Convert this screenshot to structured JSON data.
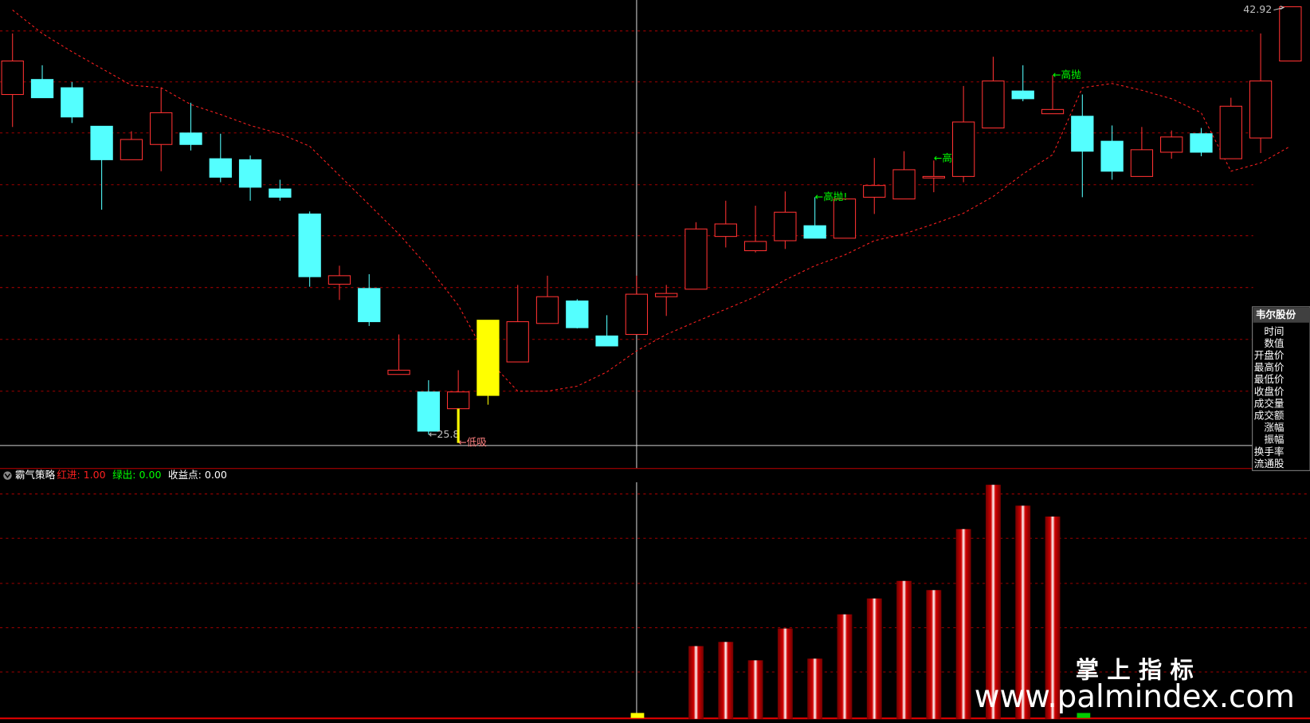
{
  "chart_data": [
    {
      "type": "candlestick",
      "open": [
        39.41,
        40.01,
        39.68,
        38.14,
        36.8,
        37.41,
        37.87,
        36.84,
        36.8,
        35.63,
        34.63,
        31.82,
        31.65,
        28.21,
        27.51,
        26.84,
        27.37,
        28.71,
        30.25,
        31.15,
        29.75,
        29.81,
        31.32,
        31.62,
        33.73,
        33.16,
        33.56,
        34.16,
        33.66,
        35.3,
        35.23,
        36.07,
        36.13,
        38.07,
        39.55,
        38.64,
        38.54,
        37.54,
        36.13,
        37.1,
        37.84,
        36.84,
        37.67,
        40.75
      ],
      "high": [
        41.85,
        40.58,
        39.91,
        38.14,
        37.94,
        39.68,
        39.08,
        37.84,
        36.97,
        36.0,
        34.73,
        32.56,
        32.22,
        29.81,
        27.98,
        28.38,
        30.38,
        31.79,
        32.16,
        31.22,
        30.58,
        32.16,
        31.79,
        34.3,
        35.16,
        34.96,
        35.53,
        35.3,
        35.23,
        36.87,
        37.14,
        36.77,
        39.75,
        40.92,
        40.58,
        40.18,
        39.41,
        38.17,
        38.11,
        37.97,
        38.07,
        39.28,
        41.85,
        42.92
      ],
      "low": [
        38.11,
        39.28,
        38.27,
        34.8,
        36.8,
        36.34,
        37.17,
        35.9,
        35.16,
        35.16,
        31.72,
        31.19,
        30.15,
        28.21,
        25.8,
        26.84,
        27.0,
        28.71,
        30.25,
        30.05,
        29.35,
        29.81,
        30.55,
        31.62,
        33.29,
        33.09,
        33.23,
        33.66,
        33.66,
        34.63,
        35.23,
        35.5,
        35.9,
        38.07,
        39.14,
        38.64,
        35.3,
        36.0,
        36.13,
        36.84,
        36.94,
        36.84,
        37.07,
        40.75
      ],
      "close": [
        40.75,
        39.28,
        38.51,
        36.8,
        37.61,
        38.68,
        37.41,
        36.1,
        35.7,
        35.3,
        32.12,
        32.16,
        30.32,
        28.38,
        25.94,
        27.51,
        30.38,
        30.32,
        31.32,
        30.08,
        29.35,
        31.42,
        31.45,
        34.03,
        34.23,
        33.53,
        34.7,
        33.66,
        35.23,
        35.77,
        36.4,
        36.13,
        38.31,
        39.95,
        39.24,
        38.81,
        37.14,
        36.34,
        37.2,
        37.71,
        37.1,
        38.94,
        39.95,
        42.92
      ],
      "up_color": "#ff3232",
      "down_color": "#54ffff",
      "signal_color": "#ffff00",
      "highlight": 16,
      "ylim": [
        25.3,
        43.19
      ],
      "line": {
        "color": "#ff2020",
        "values": [
          42.79,
          41.85,
          41.12,
          40.45,
          39.78,
          39.68,
          39.01,
          38.61,
          38.17,
          37.84,
          37.34,
          36.17,
          35.0,
          33.83,
          32.49,
          30.98,
          28.81,
          27.54,
          27.54,
          27.74,
          28.31,
          29.15,
          29.81,
          30.32,
          30.82,
          31.32,
          31.99,
          32.56,
          32.99,
          33.56,
          33.83,
          34.23,
          34.66,
          35.33,
          36.23,
          37.0,
          39.68,
          39.85,
          39.58,
          39.24,
          38.68,
          36.34,
          36.67,
          37.34
        ]
      },
      "annotations": [
        {
          "text": "42.92",
          "x": 43,
          "y": 42.92,
          "color": "#c0c0c0",
          "side": "left"
        },
        {
          "text": "←高抛",
          "x": 35,
          "y": 40.18,
          "color": "#00ff00",
          "side": "right"
        },
        {
          "text": "←高",
          "x": 31,
          "y": 36.84,
          "color": "#00ff00",
          "side": "right"
        },
        {
          "text": "←高抛!",
          "x": 27,
          "y": 35.3,
          "color": "#00ff00",
          "side": "right"
        },
        {
          "text": "←25.8",
          "x": 14,
          "y": 25.8,
          "color": "#c0c0c0",
          "side": "right"
        },
        {
          "text": "←低吸",
          "x": 15,
          "y": 25.47,
          "color": "#ff8080",
          "side": "right"
        }
      ]
    },
    {
      "type": "bar",
      "title": "霸气策略",
      "legend": [
        {
          "text": "红进: 1.00",
          "color": "#ff2020"
        },
        {
          "text": "绿出: 0.00",
          "color": "#00ff00"
        },
        {
          "text": "收益点: 0.00",
          "color": "#ffffff"
        }
      ],
      "values": [
        null,
        null,
        null,
        null,
        null,
        null,
        null,
        null,
        null,
        null,
        null,
        null,
        null,
        null,
        null,
        null,
        null,
        null,
        null,
        null,
        null,
        null,
        null,
        87,
        92,
        70,
        108,
        72,
        125,
        144,
        165,
        154,
        227,
        280,
        255,
        242,
        null,
        null,
        null,
        null,
        null,
        null,
        null,
        null
      ],
      "ylim": [
        0,
        283
      ]
    }
  ],
  "panel": {
    "title": "韦尔股份",
    "fields": [
      "时间",
      "数值",
      "开盘价",
      "最高价",
      "最低价",
      "收盘价",
      "成交量",
      "成交额",
      "涨幅",
      "振幅",
      "换手率",
      "流通股"
    ]
  },
  "watermark": {
    "title": "掌 上 指 标",
    "url": "www.palmindex.com"
  }
}
